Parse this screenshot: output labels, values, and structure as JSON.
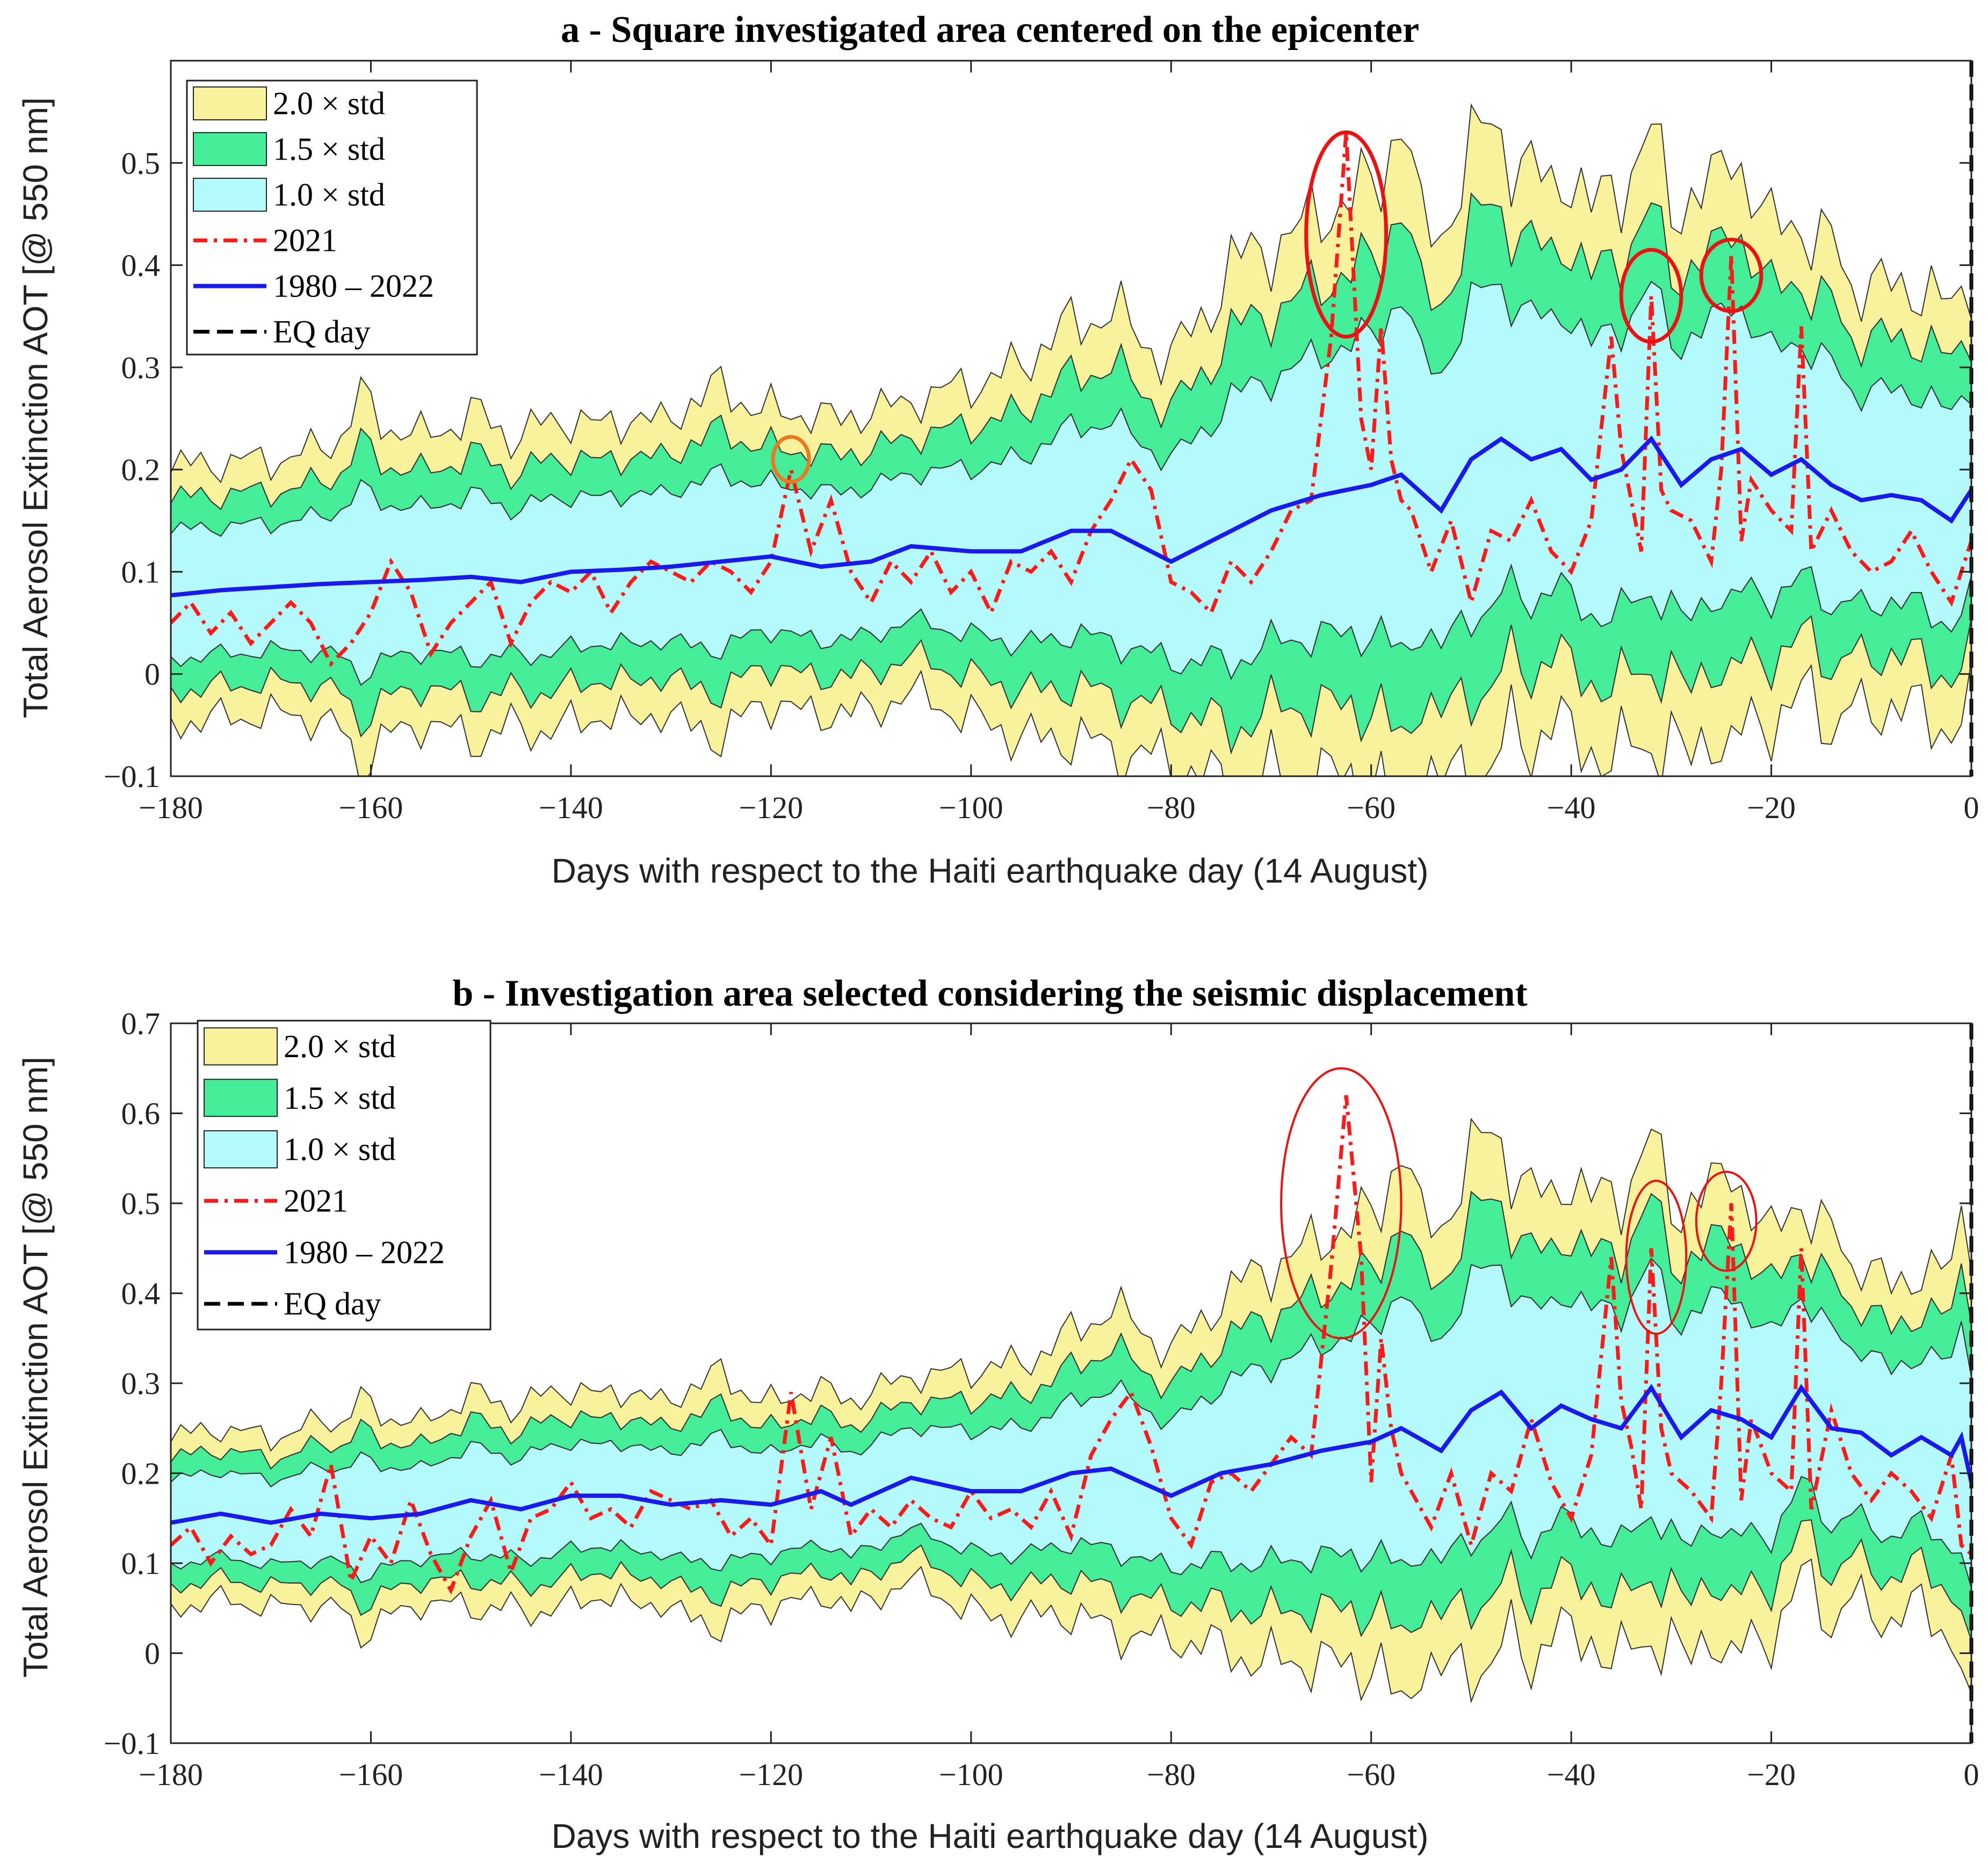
{
  "figure": {
    "panels": [
      {
        "id": "a",
        "title": "a - Square investigated area centered on the epicenter"
      },
      {
        "id": "b",
        "title": "b - Investigation area selected considering the seismic displacement"
      }
    ]
  },
  "colors": {
    "band_2std": "#f7f29b",
    "band_15std": "#44ee99",
    "band_1std": "#b4fafa",
    "series_2021": "#ff1a1a",
    "series_mean": "#1a1aee",
    "eq_line": "#000000",
    "highlight_red": "#ee1111",
    "highlight_orange": "#ee7722"
  },
  "chart_data": [
    {
      "type": "line",
      "title": "a - Square investigated area centered on the epicenter",
      "xlabel": "Days with respect to the Haiti earthquake day (14 August)",
      "ylabel": "Total Aerosol Extinction AOT [@ 550 nm]",
      "xlim": [
        -180,
        0
      ],
      "ylim": [
        -0.1,
        0.6
      ],
      "xticks": [
        -180,
        -160,
        -140,
        -120,
        -100,
        -80,
        -60,
        -40,
        -20,
        0
      ],
      "xtick_labels": [
        "−180",
        "−160",
        "−140",
        "−120",
        "−100",
        "−80",
        "−60",
        "−40",
        "−20",
        "0"
      ],
      "yticks": [
        -0.1,
        0,
        0.1,
        0.2,
        0.3,
        0.4,
        0.5
      ],
      "ytick_labels": [
        "−0.1",
        "0",
        "0.1",
        "0.2",
        "0.3",
        "0.4",
        "0.5"
      ],
      "legend": {
        "position": "top-left",
        "entries": [
          "2.0 × std",
          "1.5 × std",
          "1.0 × std",
          "2021",
          "1980 – 2022",
          "EQ day"
        ]
      },
      "mean_series": {
        "name": "1980 – 2022",
        "x": [
          -180,
          -175,
          -170,
          -165,
          -160,
          -155,
          -150,
          -145,
          -140,
          -135,
          -130,
          -125,
          -120,
          -115,
          -110,
          -106,
          -100,
          -95,
          -90,
          -86,
          -80,
          -75,
          -70,
          -65,
          -60,
          -57,
          -53,
          -50,
          -47,
          -44,
          -41,
          -38,
          -35,
          -32,
          -29,
          -26,
          -23,
          -20,
          -17,
          -14,
          -11,
          -8,
          -5,
          -2,
          0
        ],
        "values": [
          0.077,
          0.082,
          0.085,
          0.088,
          0.09,
          0.092,
          0.095,
          0.09,
          0.1,
          0.102,
          0.105,
          0.11,
          0.115,
          0.105,
          0.11,
          0.125,
          0.12,
          0.12,
          0.14,
          0.14,
          0.11,
          0.135,
          0.16,
          0.175,
          0.185,
          0.195,
          0.16,
          0.21,
          0.23,
          0.21,
          0.22,
          0.19,
          0.2,
          0.23,
          0.185,
          0.21,
          0.22,
          0.195,
          0.21,
          0.185,
          0.17,
          0.175,
          0.17,
          0.15,
          0.18
        ]
      },
      "series_2021": {
        "name": "2021",
        "x": [
          -180,
          -178,
          -176,
          -174,
          -172,
          -170,
          -168,
          -166,
          -164,
          -162,
          -160,
          -158,
          -156,
          -154,
          -152,
          -150,
          -148,
          -146,
          -144,
          -142,
          -140,
          -138,
          -136,
          -134,
          -132,
          -130,
          -128,
          -126,
          -124,
          -122,
          -120,
          -118,
          -116,
          -114,
          -112,
          -110,
          -108,
          -106,
          -104,
          -102,
          -100,
          -98,
          -96,
          -94,
          -92,
          -90,
          -88,
          -86,
          -84,
          -82,
          -80,
          -78,
          -76,
          -74,
          -72,
          -70,
          -68,
          -66,
          -64,
          -62.5,
          -61,
          -60,
          -59,
          -58,
          -57,
          -56,
          -54,
          -52,
          -50,
          -48,
          -46,
          -44,
          -42,
          -40,
          -38,
          -36,
          -35,
          -34,
          -33,
          -32,
          -31,
          -30,
          -28,
          -26,
          -25,
          -24,
          -23,
          -22,
          -20,
          -18,
          -17,
          -16,
          -14,
          -12,
          -10,
          -8,
          -6,
          -4,
          -2,
          0
        ],
        "values": [
          0.05,
          0.07,
          0.04,
          0.06,
          0.03,
          0.05,
          0.07,
          0.05,
          0.01,
          0.03,
          0.06,
          0.11,
          0.08,
          0.02,
          0.05,
          0.07,
          0.09,
          0.03,
          0.07,
          0.09,
          0.08,
          0.1,
          0.06,
          0.09,
          0.11,
          0.1,
          0.09,
          0.11,
          0.1,
          0.08,
          0.11,
          0.2,
          0.12,
          0.17,
          0.1,
          0.07,
          0.11,
          0.09,
          0.12,
          0.08,
          0.1,
          0.06,
          0.11,
          0.1,
          0.12,
          0.09,
          0.14,
          0.17,
          0.21,
          0.18,
          0.09,
          0.08,
          0.06,
          0.11,
          0.09,
          0.12,
          0.16,
          0.17,
          0.33,
          0.53,
          0.25,
          0.2,
          0.34,
          0.21,
          0.17,
          0.16,
          0.1,
          0.15,
          0.07,
          0.14,
          0.13,
          0.17,
          0.12,
          0.1,
          0.15,
          0.33,
          0.22,
          0.17,
          0.12,
          0.37,
          0.18,
          0.16,
          0.15,
          0.11,
          0.2,
          0.41,
          0.13,
          0.19,
          0.16,
          0.14,
          0.34,
          0.12,
          0.16,
          0.12,
          0.1,
          0.11,
          0.14,
          0.1,
          0.07,
          0.13
        ]
      },
      "std_band": {
        "x": [
          -180,
          -177,
          -174,
          -171,
          -168,
          -165,
          -163,
          -161,
          -158,
          -155,
          -152,
          -149,
          -146,
          -143,
          -140,
          -137,
          -134,
          -131,
          -128,
          -125,
          -122,
          -119,
          -116,
          -113,
          -110,
          -107,
          -104,
          -101,
          -98,
          -95,
          -92,
          -89,
          -86,
          -83,
          -80,
          -77,
          -74,
          -71,
          -68,
          -65,
          -62,
          -59,
          -57,
          -55,
          -52,
          -50,
          -48,
          -46,
          -44,
          -42,
          -40,
          -38,
          -36,
          -34,
          -32,
          -30,
          -28,
          -26,
          -24,
          -22,
          -20,
          -18,
          -16,
          -14,
          -12,
          -10,
          -8,
          -6,
          -4,
          -2,
          0
        ],
        "values": [
          0.06,
          0.065,
          0.06,
          0.065,
          0.06,
          0.07,
          0.07,
          0.09,
          0.075,
          0.07,
          0.075,
          0.08,
          0.07,
          0.075,
          0.075,
          0.07,
          0.075,
          0.07,
          0.08,
          0.085,
          0.075,
          0.07,
          0.075,
          0.07,
          0.075,
          0.07,
          0.075,
          0.08,
          0.085,
          0.09,
          0.1,
          0.1,
          0.11,
          0.1,
          0.1,
          0.11,
          0.13,
          0.13,
          0.13,
          0.14,
          0.14,
          0.15,
          0.18,
          0.13,
          0.14,
          0.15,
          0.16,
          0.14,
          0.14,
          0.13,
          0.14,
          0.13,
          0.14,
          0.14,
          0.15,
          0.13,
          0.14,
          0.13,
          0.15,
          0.13,
          0.12,
          0.12,
          0.11,
          0.12,
          0.1,
          0.11,
          0.1,
          0.1,
          0.11,
          0.1,
          0.1
        ]
      },
      "highlight_circles": [
        {
          "day": -62.5,
          "aot": 0.43,
          "rx_days": 4,
          "ry_aot": 0.1,
          "color": "red"
        },
        {
          "day": -32,
          "aot": 0.37,
          "rx_days": 3,
          "ry_aot": 0.045,
          "color": "red"
        },
        {
          "day": -24,
          "aot": 0.39,
          "rx_days": 3,
          "ry_aot": 0.035,
          "color": "red"
        },
        {
          "day": -118,
          "aot": 0.21,
          "rx_days": 1.8,
          "ry_aot": 0.022,
          "color": "orange"
        }
      ]
    },
    {
      "type": "line",
      "title": "b - Investigation area selected considering the seismic displacement",
      "xlabel": "Days with respect to the Haiti earthquake day (14 August)",
      "ylabel": "Total Aerosol Extinction AOT [@ 550 nm]",
      "xlim": [
        -180,
        0
      ],
      "ylim": [
        -0.1,
        0.7
      ],
      "xticks": [
        -180,
        -160,
        -140,
        -120,
        -100,
        -80,
        -60,
        -40,
        -20,
        0
      ],
      "xtick_labels": [
        "−180",
        "−160",
        "−140",
        "−120",
        "−100",
        "−80",
        "−60",
        "−40",
        "−20",
        "0"
      ],
      "yticks": [
        -0.1,
        0,
        0.1,
        0.2,
        0.3,
        0.4,
        0.5,
        0.6,
        0.7
      ],
      "ytick_labels": [
        "−0.1",
        "0",
        "0.1",
        "0.2",
        "0.3",
        "0.4",
        "0.5",
        "0.6",
        "0.7"
      ],
      "legend": {
        "position": "top-left",
        "entries": [
          "2.0 × std",
          "1.5 × std",
          "1.0 × std",
          "2021",
          "1980 – 2022",
          "EQ day"
        ]
      },
      "mean_series": {
        "name": "1980 – 2022",
        "x": [
          -180,
          -175,
          -170,
          -165,
          -160,
          -155,
          -150,
          -145,
          -140,
          -135,
          -130,
          -125,
          -120,
          -115,
          -112,
          -106,
          -100,
          -95,
          -90,
          -86,
          -80,
          -75,
          -70,
          -65,
          -60,
          -57,
          -53,
          -50,
          -47,
          -44,
          -41,
          -38,
          -35,
          -32,
          -29,
          -26,
          -23,
          -20,
          -17,
          -14,
          -11,
          -8,
          -5,
          -2,
          -1,
          0
        ],
        "values": [
          0.145,
          0.155,
          0.145,
          0.155,
          0.15,
          0.155,
          0.17,
          0.16,
          0.175,
          0.175,
          0.165,
          0.17,
          0.165,
          0.18,
          0.165,
          0.195,
          0.18,
          0.18,
          0.2,
          0.205,
          0.175,
          0.2,
          0.21,
          0.225,
          0.235,
          0.25,
          0.225,
          0.27,
          0.29,
          0.25,
          0.275,
          0.26,
          0.25,
          0.295,
          0.24,
          0.27,
          0.26,
          0.24,
          0.295,
          0.25,
          0.245,
          0.22,
          0.24,
          0.22,
          0.24,
          0.19
        ]
      },
      "series_2021": {
        "name": "2021",
        "x": [
          -180,
          -178,
          -176,
          -174,
          -172,
          -170,
          -168,
          -166,
          -164,
          -162,
          -160,
          -158,
          -156,
          -154,
          -152,
          -150,
          -148,
          -146,
          -144,
          -142,
          -140,
          -138,
          -136,
          -134,
          -132,
          -130,
          -128,
          -126,
          -124,
          -122,
          -120,
          -118,
          -116,
          -114,
          -112,
          -110,
          -108,
          -106,
          -104,
          -102,
          -100,
          -98,
          -96,
          -94,
          -92,
          -90,
          -88,
          -86,
          -84,
          -82,
          -80,
          -78,
          -76,
          -74,
          -72,
          -70,
          -68,
          -66,
          -64,
          -62.5,
          -61,
          -60,
          -59,
          -58,
          -57,
          -56,
          -54,
          -52,
          -50,
          -48,
          -46,
          -44,
          -42,
          -40,
          -38,
          -36,
          -35,
          -34,
          -33,
          -32,
          -31,
          -30,
          -28,
          -26,
          -25,
          -24,
          -23,
          -22,
          -20,
          -18,
          -17,
          -16,
          -14,
          -12,
          -10,
          -8,
          -6,
          -4,
          -2,
          -1,
          0
        ],
        "values": [
          0.12,
          0.14,
          0.1,
          0.13,
          0.11,
          0.12,
          0.16,
          0.13,
          0.21,
          0.08,
          0.13,
          0.1,
          0.17,
          0.11,
          0.07,
          0.13,
          0.17,
          0.09,
          0.15,
          0.16,
          0.19,
          0.15,
          0.16,
          0.14,
          0.18,
          0.17,
          0.16,
          0.17,
          0.13,
          0.15,
          0.12,
          0.29,
          0.16,
          0.24,
          0.13,
          0.16,
          0.14,
          0.17,
          0.15,
          0.14,
          0.18,
          0.15,
          0.16,
          0.14,
          0.18,
          0.13,
          0.22,
          0.26,
          0.29,
          0.23,
          0.15,
          0.12,
          0.19,
          0.2,
          0.18,
          0.21,
          0.24,
          0.22,
          0.43,
          0.62,
          0.44,
          0.19,
          0.35,
          0.25,
          0.2,
          0.18,
          0.14,
          0.2,
          0.12,
          0.2,
          0.18,
          0.26,
          0.19,
          0.15,
          0.22,
          0.44,
          0.28,
          0.23,
          0.16,
          0.45,
          0.25,
          0.2,
          0.18,
          0.15,
          0.3,
          0.5,
          0.17,
          0.26,
          0.2,
          0.18,
          0.45,
          0.16,
          0.27,
          0.2,
          0.17,
          0.2,
          0.18,
          0.15,
          0.22,
          0.12,
          0.11
        ]
      },
      "std_band": {
        "x": [
          -180,
          -177,
          -174,
          -171,
          -168,
          -165,
          -163,
          -161,
          -158,
          -155,
          -152,
          -149,
          -146,
          -143,
          -140,
          -137,
          -134,
          -131,
          -128,
          -125,
          -122,
          -119,
          -116,
          -113,
          -110,
          -107,
          -104,
          -101,
          -98,
          -95,
          -92,
          -89,
          -86,
          -83,
          -80,
          -77,
          -74,
          -71,
          -68,
          -65,
          -62,
          -59,
          -57,
          -55,
          -52,
          -50,
          -48,
          -46,
          -44,
          -42,
          -40,
          -38,
          -36,
          -34,
          -32,
          -30,
          -28,
          -26,
          -24,
          -22,
          -20,
          -18,
          -16,
          -14,
          -12,
          -10,
          -8,
          -6,
          -4,
          -2,
          0
        ],
        "values": [
          0.045,
          0.05,
          0.045,
          0.05,
          0.045,
          0.055,
          0.05,
          0.065,
          0.055,
          0.05,
          0.055,
          0.06,
          0.055,
          0.06,
          0.06,
          0.055,
          0.06,
          0.055,
          0.065,
          0.07,
          0.06,
          0.055,
          0.06,
          0.055,
          0.06,
          0.055,
          0.06,
          0.065,
          0.07,
          0.07,
          0.075,
          0.08,
          0.09,
          0.085,
          0.08,
          0.09,
          0.1,
          0.11,
          0.11,
          0.12,
          0.12,
          0.13,
          0.16,
          0.12,
          0.13,
          0.14,
          0.15,
          0.13,
          0.13,
          0.12,
          0.13,
          0.12,
          0.13,
          0.13,
          0.14,
          0.12,
          0.13,
          0.12,
          0.14,
          0.12,
          0.11,
          0.11,
          0.1,
          0.11,
          0.09,
          0.1,
          0.09,
          0.09,
          0.1,
          0.1,
          0.14
        ]
      },
      "highlight_circles": [
        {
          "day": -63,
          "aot": 0.5,
          "rx_days": 6,
          "ry_aot": 0.15,
          "color": "red"
        },
        {
          "day": -31.5,
          "aot": 0.44,
          "rx_days": 3,
          "ry_aot": 0.085,
          "color": "red"
        },
        {
          "day": -24.5,
          "aot": 0.48,
          "rx_days": 3,
          "ry_aot": 0.055,
          "color": "red"
        }
      ]
    }
  ]
}
